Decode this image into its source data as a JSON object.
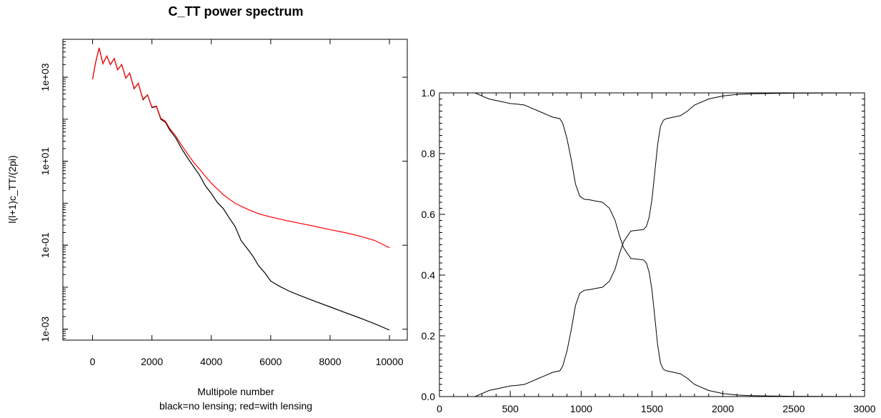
{
  "chart_data": [
    {
      "type": "line",
      "title": "C_TT power spectrum",
      "xlabel": "Multipole number",
      "xlabel_sub": "black=no lensing; red=with lensing",
      "ylabel": "l(l+1)c_TT/(2pi)",
      "xlim": [
        -1000,
        10600
      ],
      "ylim": [
        0.00055,
        8000
      ],
      "yscale": "log",
      "grid": false,
      "xticks": [
        0,
        2000,
        4000,
        6000,
        8000,
        10000
      ],
      "xtick_labels": [
        "0",
        "2000",
        "4000",
        "6000",
        "8000",
        "10000"
      ],
      "yticks": [
        0.001,
        0.1,
        10,
        1000
      ],
      "ytick_labels": [
        "1e-03",
        "1e-01",
        "1e+01",
        "1e+03"
      ],
      "series": [
        {
          "color": "#000000",
          "x": [
            0,
            100,
            220,
            350,
            480,
            600,
            730,
            840,
            980,
            1120,
            1250,
            1400,
            1540,
            1700,
            1850,
            2000,
            2150,
            2300,
            2450,
            2600,
            2800,
            3000,
            3200,
            3400,
            3600,
            3800,
            4000,
            4200,
            4400,
            4600,
            4800,
            5000,
            5200,
            5400,
            5600,
            5800,
            6000,
            6300,
            6600,
            7000,
            7500,
            8000,
            8500,
            9000,
            9500,
            10000
          ],
          "y": [
            900,
            2200,
            5000,
            2100,
            3200,
            2000,
            2800,
            1500,
            2000,
            950,
            1250,
            530,
            720,
            290,
            380,
            190,
            200,
            100,
            85,
            55,
            36,
            20,
            12,
            7.5,
            4.7,
            2.6,
            1.7,
            1.05,
            0.75,
            0.45,
            0.28,
            0.13,
            0.085,
            0.055,
            0.032,
            0.022,
            0.014,
            0.0105,
            0.0082,
            0.0063,
            0.0046,
            0.0034,
            0.0025,
            0.00185,
            0.00135,
            0.00095
          ]
        },
        {
          "color": "#ff0000",
          "x": [
            0,
            100,
            220,
            350,
            480,
            600,
            730,
            840,
            980,
            1120,
            1250,
            1400,
            1540,
            1700,
            1850,
            2000,
            2150,
            2300,
            2450,
            2600,
            2800,
            3000,
            3200,
            3400,
            3600,
            3800,
            4000,
            4200,
            4400,
            4600,
            4800,
            5000,
            5300,
            5600,
            6000,
            6500,
            7000,
            7500,
            8000,
            8500,
            9000,
            9500,
            10000
          ],
          "y": [
            900,
            2200,
            5000,
            2100,
            3200,
            2000,
            2800,
            1500,
            2000,
            960,
            1250,
            540,
            720,
            300,
            380,
            195,
            205,
            105,
            90,
            60,
            40,
            24,
            15,
            9.5,
            6.5,
            4.4,
            3.0,
            2.2,
            1.6,
            1.25,
            1.0,
            0.85,
            0.68,
            0.56,
            0.47,
            0.39,
            0.33,
            0.28,
            0.235,
            0.2,
            0.165,
            0.13,
            0.087
          ]
        }
      ]
    },
    {
      "type": "line",
      "title": "",
      "xlabel": "",
      "ylabel": "",
      "xlim": [
        0,
        3000
      ],
      "ylim": [
        0,
        1
      ],
      "grid": false,
      "xticks": [
        0,
        500,
        1000,
        1500,
        2000,
        2500,
        3000
      ],
      "xtick_labels": [
        "0",
        "500",
        "1000",
        "1500",
        "2000",
        "2500",
        "3000"
      ],
      "yticks": [
        0,
        0.2,
        0.4,
        0.6,
        0.8,
        1.0
      ],
      "ytick_labels": [
        "0.0",
        "0.2",
        "0.4",
        "0.6",
        "0.8",
        "1.0"
      ],
      "series": [
        {
          "color": "#000000",
          "x": [
            0,
            250,
            300,
            350,
            400,
            450,
            500,
            550,
            600,
            650,
            700,
            750,
            800,
            850,
            870,
            900,
            930,
            960,
            990,
            1020,
            1060,
            1100,
            1150,
            1200,
            1240,
            1270,
            1300,
            1350,
            1400,
            1440,
            1460,
            1480,
            1500,
            1520,
            1540,
            1560,
            1580,
            1600,
            1650,
            1700,
            1750,
            1800,
            1900,
            2000,
            2100,
            2200,
            2300,
            2500,
            3000
          ],
          "y": [
            1.0,
            1.0,
            0.99,
            0.98,
            0.975,
            0.97,
            0.965,
            0.963,
            0.96,
            0.95,
            0.94,
            0.93,
            0.92,
            0.915,
            0.9,
            0.85,
            0.78,
            0.7,
            0.66,
            0.65,
            0.648,
            0.644,
            0.64,
            0.62,
            0.58,
            0.53,
            0.49,
            0.455,
            0.452,
            0.45,
            0.44,
            0.41,
            0.35,
            0.26,
            0.17,
            0.11,
            0.09,
            0.085,
            0.08,
            0.075,
            0.06,
            0.04,
            0.02,
            0.01,
            0.005,
            0.003,
            0.002,
            0.001,
            0.0
          ]
        },
        {
          "color": "#000000",
          "x": [
            0,
            250,
            300,
            350,
            400,
            450,
            500,
            550,
            600,
            650,
            700,
            750,
            800,
            850,
            870,
            900,
            930,
            960,
            990,
            1020,
            1060,
            1100,
            1150,
            1200,
            1240,
            1270,
            1300,
            1350,
            1400,
            1440,
            1460,
            1480,
            1500,
            1520,
            1540,
            1560,
            1580,
            1600,
            1650,
            1700,
            1750,
            1800,
            1900,
            2000,
            2100,
            2200,
            2300,
            2500,
            3000
          ],
          "y": [
            0.0,
            0.0,
            0.01,
            0.02,
            0.025,
            0.03,
            0.035,
            0.037,
            0.04,
            0.05,
            0.06,
            0.07,
            0.08,
            0.085,
            0.1,
            0.15,
            0.22,
            0.3,
            0.34,
            0.35,
            0.352,
            0.356,
            0.36,
            0.38,
            0.42,
            0.47,
            0.51,
            0.545,
            0.548,
            0.55,
            0.56,
            0.59,
            0.65,
            0.74,
            0.83,
            0.89,
            0.91,
            0.915,
            0.92,
            0.925,
            0.94,
            0.96,
            0.98,
            0.99,
            0.995,
            0.997,
            0.998,
            0.999,
            1.0
          ]
        }
      ]
    }
  ]
}
